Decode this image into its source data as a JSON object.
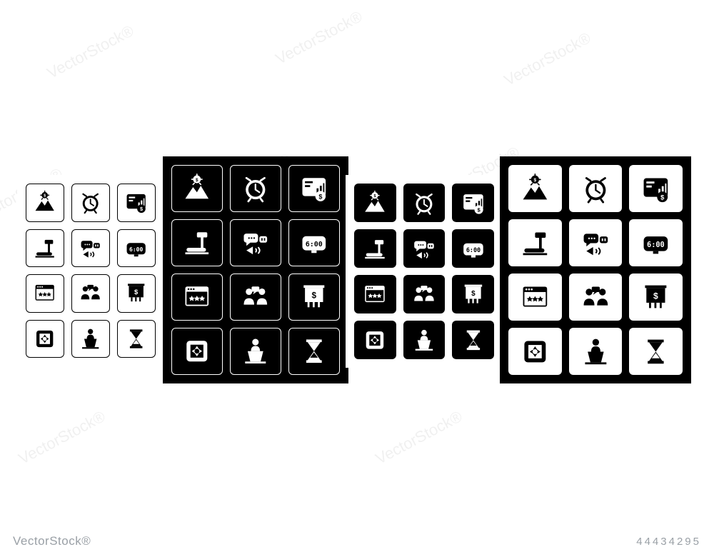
{
  "watermark": {
    "brand": "VectorStock®",
    "id": "44434295"
  },
  "diag_text": "VectorStock",
  "colors": {
    "black": "#000000",
    "white": "#ffffff",
    "wm": "#9aa0a6"
  },
  "icons": [
    {
      "name": "mountain-dollar-icon",
      "label": "mountain with dollar"
    },
    {
      "name": "alarm-clock-icon",
      "label": "alarm clock"
    },
    {
      "name": "dashboard-dollar-icon",
      "label": "dashboard with dollar"
    },
    {
      "name": "treadmill-icon",
      "label": "treadmill"
    },
    {
      "name": "conversation-signal-icon",
      "label": "speech with signal"
    },
    {
      "name": "digital-clock-icon",
      "label": "digital clock 6:00"
    },
    {
      "name": "browser-stars-icon",
      "label": "browser stars rating"
    },
    {
      "name": "people-chat-icon",
      "label": "two people chat"
    },
    {
      "name": "projector-dollar-icon",
      "label": "projector dollar"
    },
    {
      "name": "no-distractions-icon",
      "label": "no distractions"
    },
    {
      "name": "speaker-podium-icon",
      "label": "speaker at podium"
    },
    {
      "name": "hourglass-icon",
      "label": "hourglass"
    }
  ],
  "panels": [
    {
      "name": "panel-outline",
      "bg": "#ffffff",
      "tile": "outline",
      "glyph": "#000000"
    },
    {
      "name": "panel-dark-outline",
      "bg": "#000000",
      "tile": "outline-inv",
      "glyph": "#ffffff"
    },
    {
      "name": "panel-solid-dark",
      "bg": "#ffffff",
      "tile": "solid-dark",
      "glyph": "#ffffff"
    },
    {
      "name": "panel-solid-light",
      "bg": "#000000",
      "tile": "solid-light",
      "glyph": "#000000"
    }
  ],
  "digital_clock_text": "6:00"
}
